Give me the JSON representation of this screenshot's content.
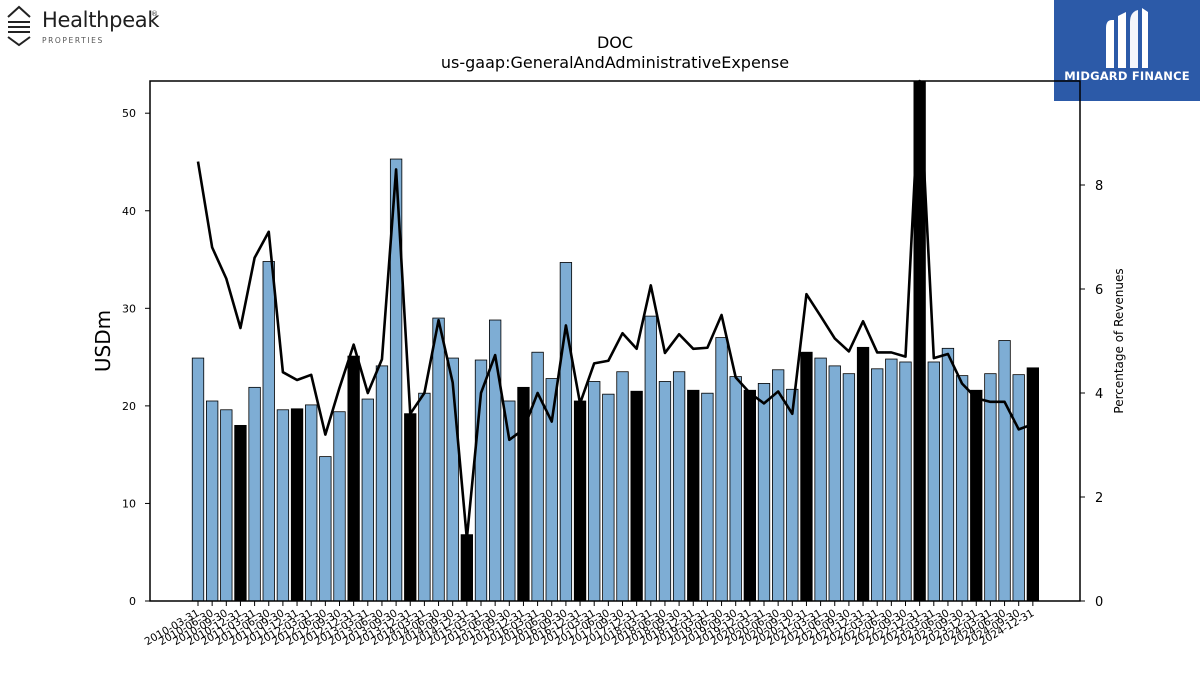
{
  "header": {
    "left_logo": {
      "name": "Healthpeak",
      "reg_mark": "®",
      "subtitle": "PROPERTIES"
    },
    "right_logo": {
      "name": "MIDGARD FINANCE",
      "icon": "midgard-m-icon"
    }
  },
  "colors": {
    "bar_regular": "#7eadd4",
    "bar_highlight": "#000000",
    "line": "#000000",
    "logo_bg": "#2c5aa8"
  },
  "chart_data": {
    "type": "bar",
    "title": "DOC",
    "subtitle": "us-gaap:GeneralAndAdministrativeExpense",
    "ylabel": "USDm",
    "y2label": "Percentage of Revenues",
    "ylim": [
      0,
      53.3
    ],
    "y2lim": [
      0,
      10.0
    ],
    "yticks": [
      0,
      10,
      20,
      30,
      40,
      50
    ],
    "y2ticks": [
      0,
      2,
      4,
      6,
      8
    ],
    "grid": false,
    "categories": [
      "2010-03-31",
      "2010-06-30",
      "2010-09-30",
      "2010-12-31",
      "2011-03-31",
      "2011-06-30",
      "2011-09-30",
      "2011-12-31",
      "2012-03-31",
      "2012-06-30",
      "2012-09-30",
      "2012-12-31",
      "2013-03-31",
      "2013-06-30",
      "2013-09-30",
      "2013-12-31",
      "2014-03-31",
      "2014-06-30",
      "2014-09-30",
      "2014-12-31",
      "2015-03-31",
      "2015-06-30",
      "2015-09-30",
      "2015-12-31",
      "2016-03-31",
      "2016-06-30",
      "2016-09-30",
      "2016-12-31",
      "2017-03-31",
      "2017-06-30",
      "2017-09-30",
      "2017-12-31",
      "2018-03-31",
      "2018-06-30",
      "2018-09-30",
      "2018-12-31",
      "2019-03-31",
      "2019-06-30",
      "2019-09-30",
      "2019-12-31",
      "2020-03-31",
      "2020-06-30",
      "2020-09-30",
      "2020-12-31",
      "2021-03-31",
      "2021-06-30",
      "2021-09-30",
      "2021-12-31",
      "2022-03-31",
      "2022-06-30",
      "2022-09-30",
      "2022-12-31",
      "2023-03-31",
      "2023-06-30",
      "2023-09-30",
      "2023-12-31",
      "2024-03-31",
      "2024-06-30",
      "2024-09-30",
      "2024-12-31"
    ],
    "series": [
      {
        "name": "",
        "kind": "bar",
        "values": [
          24.9,
          20.5,
          19.6,
          18.0,
          21.9,
          34.8,
          19.6,
          19.7,
          20.1,
          14.8,
          19.4,
          25.1,
          20.7,
          24.1,
          45.3,
          19.2,
          21.3,
          29.0,
          24.9,
          6.8,
          24.7,
          28.8,
          20.5,
          21.9,
          25.5,
          22.8,
          34.7,
          20.5,
          22.5,
          21.2,
          23.5,
          21.5,
          29.2,
          22.5,
          23.5,
          21.6,
          21.3,
          27.0,
          23.0,
          21.6,
          22.3,
          23.7,
          21.7,
          25.5,
          24.9,
          24.1,
          23.3,
          26.0,
          23.8,
          24.8,
          24.5,
          53.3,
          24.5,
          25.9,
          23.1,
          21.6,
          23.3,
          26.7,
          23.2,
          23.9
        ],
        "highlight": [
          false,
          false,
          false,
          true,
          false,
          false,
          false,
          true,
          false,
          false,
          false,
          true,
          false,
          false,
          false,
          true,
          false,
          false,
          false,
          true,
          false,
          false,
          false,
          true,
          false,
          false,
          false,
          true,
          false,
          false,
          false,
          true,
          false,
          false,
          false,
          true,
          false,
          false,
          false,
          true,
          false,
          false,
          false,
          true,
          false,
          false,
          false,
          true,
          false,
          false,
          false,
          true,
          false,
          false,
          false,
          true,
          false,
          false,
          false,
          true
        ]
      },
      {
        "name": "",
        "kind": "line",
        "axis": "right",
        "values": [
          8.45,
          6.8,
          6.2,
          5.25,
          6.6,
          7.1,
          4.4,
          4.25,
          4.35,
          3.2,
          4.1,
          4.93,
          4.0,
          4.65,
          8.3,
          3.6,
          4.0,
          5.4,
          4.2,
          1.2,
          4.0,
          4.73,
          3.1,
          3.3,
          4.0,
          3.45,
          5.3,
          3.8,
          4.57,
          4.62,
          5.15,
          4.85,
          6.07,
          4.77,
          5.13,
          4.85,
          4.87,
          5.5,
          4.3,
          4.0,
          3.8,
          4.03,
          3.6,
          5.9,
          5.48,
          5.05,
          4.8,
          5.38,
          4.78,
          4.78,
          4.7,
          10.0,
          4.67,
          4.75,
          4.18,
          3.9,
          3.83,
          3.83,
          3.3,
          3.4
        ]
      }
    ]
  }
}
